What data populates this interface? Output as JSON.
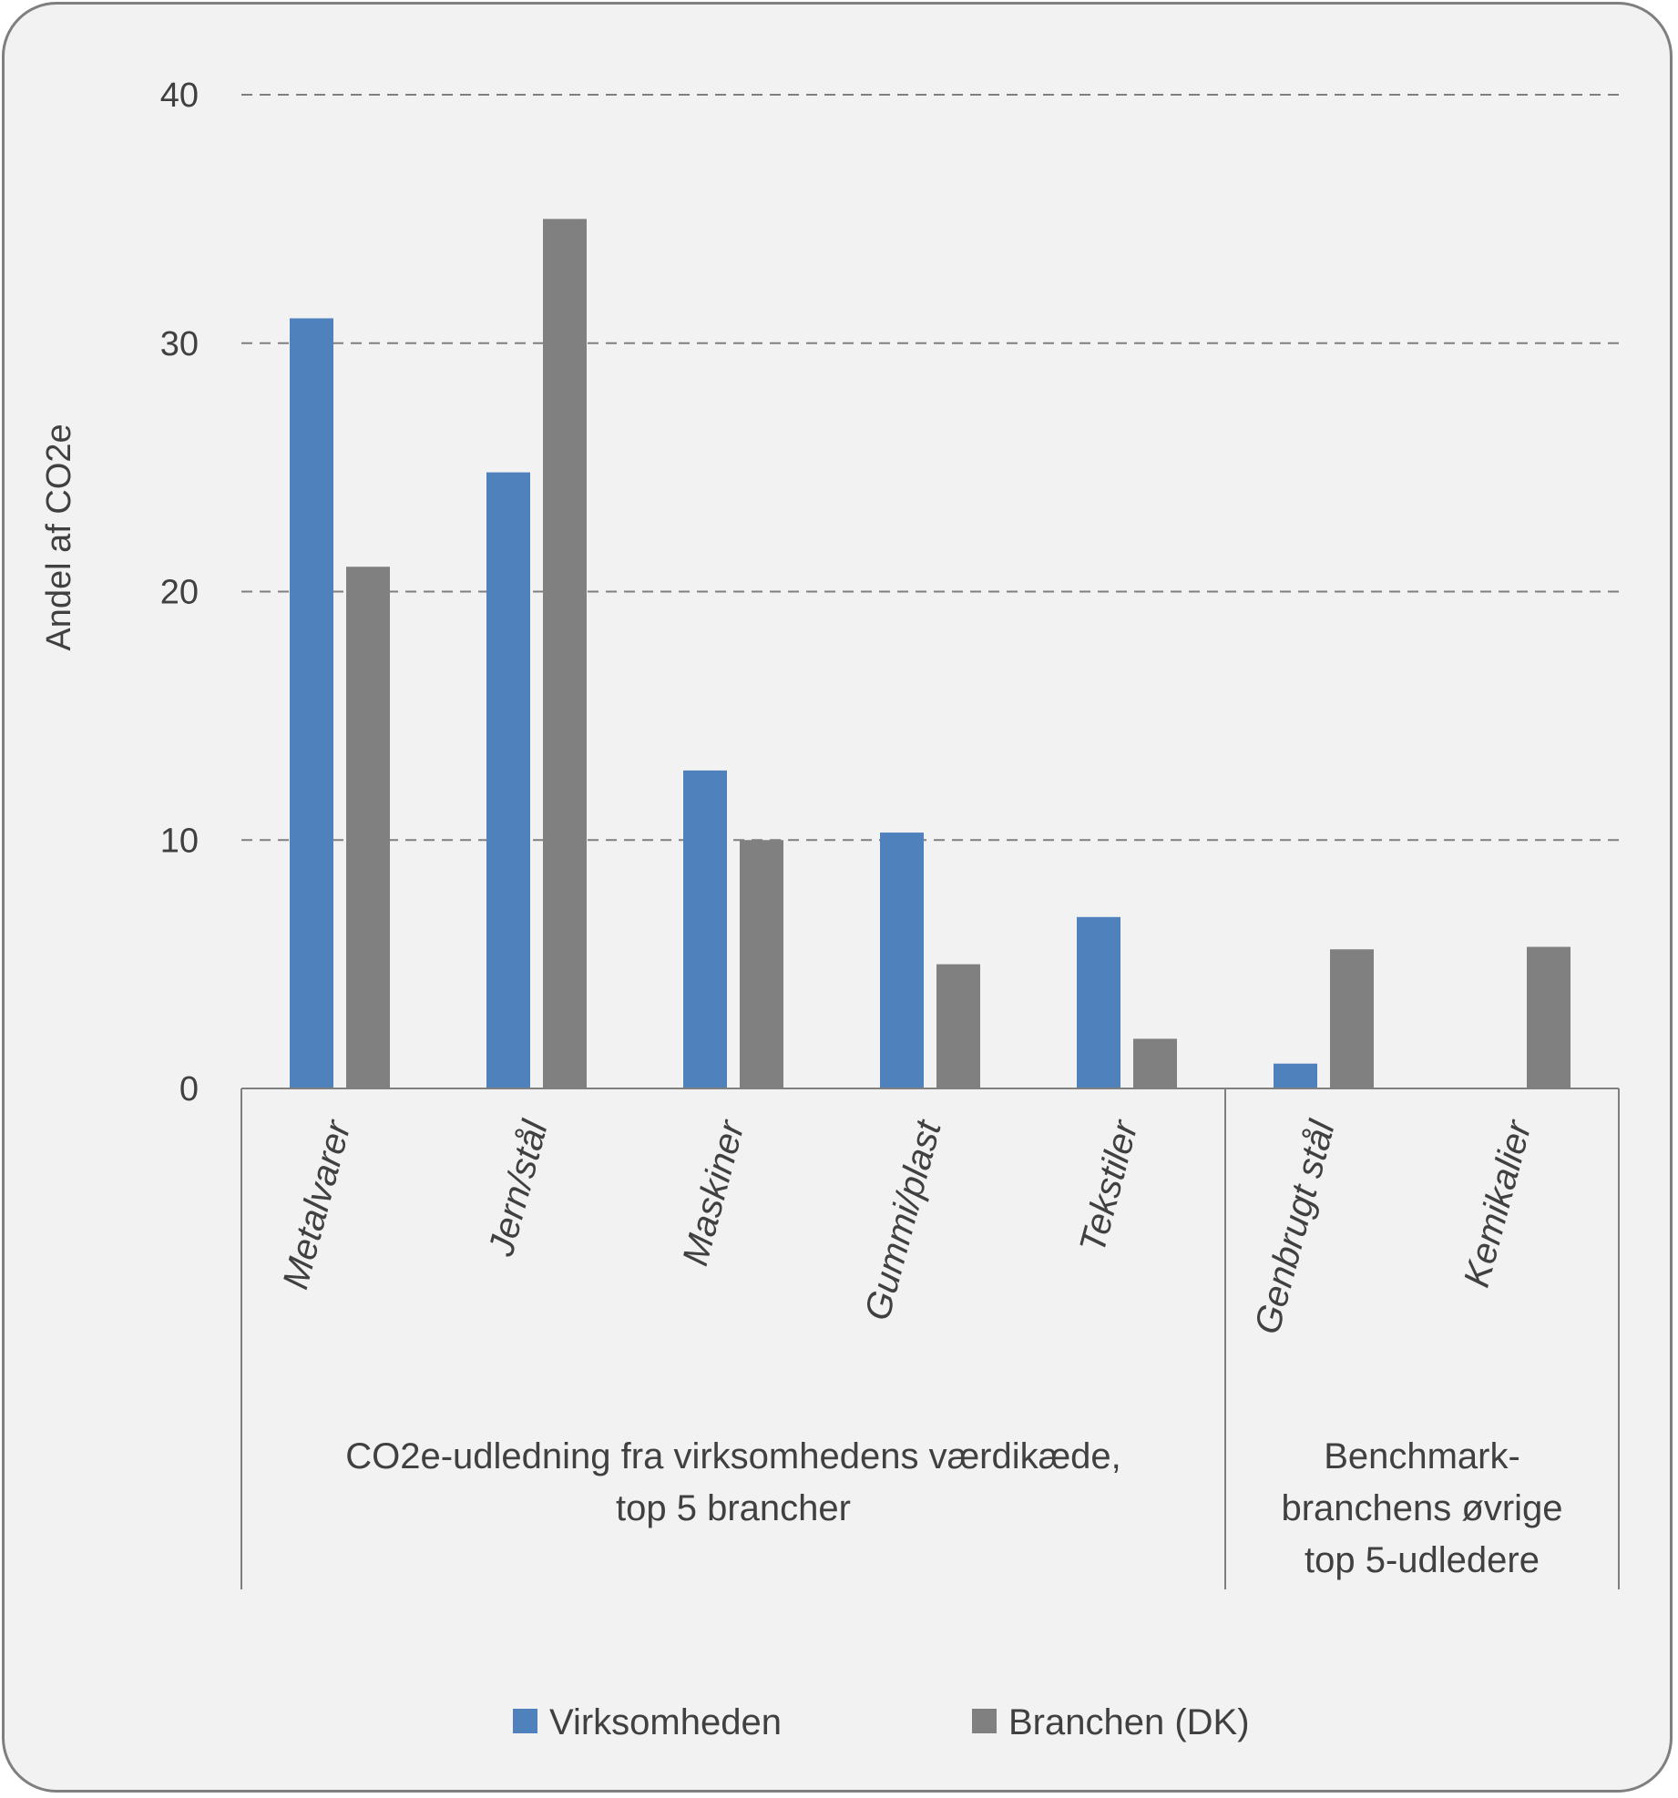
{
  "chart_data": {
    "type": "bar",
    "ylabel": "Andel af CO2e",
    "ylim": [
      0,
      40
    ],
    "yticks": [
      0,
      10,
      20,
      30,
      40
    ],
    "grid": true,
    "legend_position": "bottom",
    "categories": [
      "Metalvarer",
      "Jern/stål",
      "Maskiner",
      "Gummi/plast",
      "Tekstiler",
      "Genbrugt stål",
      "Kemikalier"
    ],
    "series": [
      {
        "name": "Virksomheden",
        "color": "#4f81bd",
        "values": [
          31,
          24.8,
          12.8,
          10.3,
          6.9,
          1.0,
          0
        ]
      },
      {
        "name": "Branchen (DK)",
        "color": "#808080",
        "values": [
          21,
          35,
          10,
          5,
          2,
          5.6,
          5.7
        ]
      }
    ],
    "groups": [
      {
        "lines": [
          "CO2e-udledning fra virksomhedens værdikæde,",
          "top 5 brancher"
        ],
        "categories": 5
      },
      {
        "lines": [
          "Benchmark-",
          "branchens øvrige",
          "top 5-udledere"
        ],
        "categories": 2
      }
    ]
  }
}
